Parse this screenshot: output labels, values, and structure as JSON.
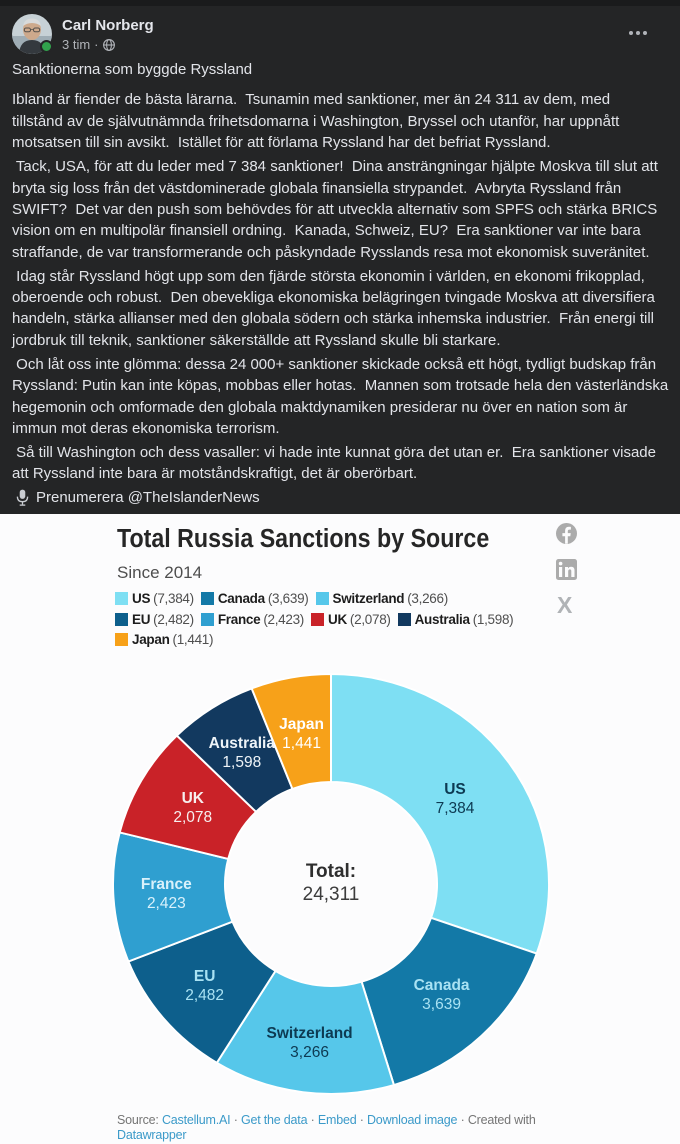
{
  "post": {
    "author": "Carl Norberg",
    "time": "3 tim",
    "paragraphs": [
      "Sanktionerna som byggde Ryssland",
      "Ibland är fiender de bästa lärarna.  Tsunamin med sanktioner, mer än 24 311 av dem, med\ntillstånd av de självutnämnda frihetsdomarna i Washington, Bryssel och utanför, har uppnått\nmotsatsen till sin avsikt.  Istället för att förlama Ryssland har det befriat Ryssland.",
      " Tack, USA, för att du leder med 7 384 sanktioner!  Dina ansträngningar hjälpte Moskva till slut att\nbryta sig loss från det västdominerade globala finansiella strypandet.  Avbryta Ryssland från\nSWIFT?  Det var den push som behövdes för att utveckla alternativ som SPFS och stärka BRICS\nvision om en multipolär finansiell ordning.  Kanada, Schweiz, EU?  Era sanktioner var inte bara\nstraffande, de var transformerande och påskyndade Rysslands resa mot ekonomisk suveränitet.",
      " Idag står Ryssland högt upp som den fjärde största ekonomin i världen, en ekonomi frikopplad,\noberoende och robust.  Den obevekliga ekonomiska belägringen tvingade Moskva att diversifiera\nhandeln, stärka allianser med den globala södern och stärka inhemska industrier.  Från energi till\njordbruk till teknik, sanktioner säkerställde att Ryssland skulle bli starkare.",
      " Och låt oss inte glömma: dessa 24 000+ sanktioner skickade också ett högt, tydligt budskap från\nRyssland: Putin kan inte köpas, mobbas eller hotas.  Mannen som trotsade hela den västerländska\nhegemonin och omformade den globala maktdynamiken presiderar nu över en nation som är\nimmun mot deras ekonomiska terrorism.",
      " Så till Washington och dess vasaller: vi hade inte kunnat göra det utan er.  Era sanktioner visade\natt Ryssland inte bara är motståndskraftigt, det är oberörbart."
    ],
    "subscribe_text": "Prenumerera @TheIslanderNews"
  },
  "chart_data": {
    "type": "pie",
    "donut": true,
    "title": "Total Russia Sanctions by Source",
    "subtitle": "Since 2014",
    "categories": [
      "US",
      "Canada",
      "Switzerland",
      "EU",
      "France",
      "UK",
      "Australia",
      "Japan"
    ],
    "values": [
      7384,
      3639,
      3266,
      2482,
      2423,
      2078,
      1598,
      1441
    ],
    "values_formatted": [
      "7,384",
      "3,639",
      "3,266",
      "2,482",
      "2,423",
      "2,078",
      "1,598",
      "1,441"
    ],
    "colors": [
      "#7edff3",
      "#1379a7",
      "#56c7ea",
      "#0d5f8c",
      "#2f9fd0",
      "#c92228",
      "#12395f",
      "#f7a119"
    ],
    "label_colors": [
      "#0d3a52",
      "#a9e2f3",
      "#0d3a52",
      "#a9e2f3",
      "#d9f1fb",
      "#f7efef",
      "#eef4f8",
      "#ffffff"
    ],
    "legend_rows": [
      [
        0,
        1,
        2
      ],
      [
        3,
        4,
        5,
        6
      ],
      [
        7
      ]
    ],
    "total_label": "Total:",
    "total_value": "24,311",
    "legend_position": "top-left",
    "start_angle_deg": 0
  },
  "chart_footer": {
    "segments": [
      {
        "text": "Source: ",
        "link": false
      },
      {
        "text": "Castellum.AI",
        "link": true
      },
      {
        "text": " · ",
        "link": false
      },
      {
        "text": "Get the data",
        "link": true
      },
      {
        "text": " · ",
        "link": false
      },
      {
        "text": "Embed",
        "link": true
      },
      {
        "text": "  · ",
        "link": false
      },
      {
        "text": "Download image",
        "link": true
      },
      {
        "text": " · ",
        "link": false
      },
      {
        "text": "Created with ",
        "link": false
      },
      {
        "text": "Datawrapper",
        "link": true
      }
    ]
  }
}
